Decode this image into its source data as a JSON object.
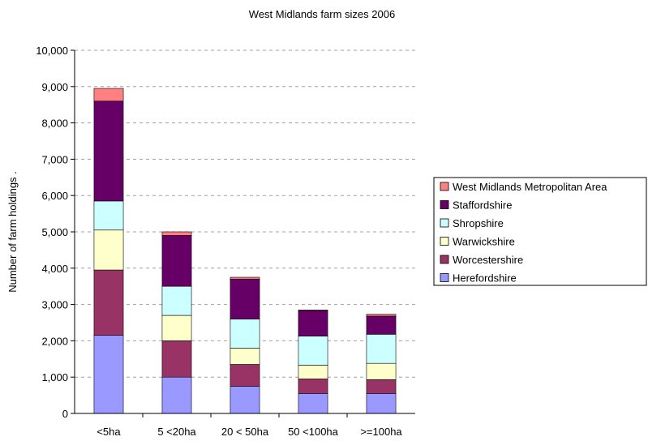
{
  "chart_data": {
    "type": "bar",
    "stacked": true,
    "title": "West Midlands farm sizes 2006",
    "xlabel": "",
    "ylabel": "Number of farm holdings .",
    "ylim": [
      0,
      10000
    ],
    "ytick_labels": [
      "0",
      "1,000",
      "2,000",
      "3,000",
      "4,000",
      "5,000",
      "6,000",
      "7,000",
      "8,000",
      "9,000",
      "10,000"
    ],
    "grid": true,
    "legend_position": "right",
    "categories": [
      "<5ha",
      "5 <20ha",
      "20 < 50ha",
      "50 <100ha",
      ">=100ha"
    ],
    "series": [
      {
        "name": "Herefordshire",
        "color": "#9999ff",
        "values": [
          2150,
          1000,
          750,
          550,
          550
        ]
      },
      {
        "name": "Worcestershire",
        "color": "#993366",
        "values": [
          1800,
          1000,
          600,
          400,
          380
        ]
      },
      {
        "name": "Warwickshire",
        "color": "#ffffcc",
        "values": [
          1100,
          700,
          450,
          380,
          450
        ]
      },
      {
        "name": "Shropshire",
        "color": "#ccffff",
        "values": [
          800,
          800,
          800,
          800,
          800
        ]
      },
      {
        "name": "Staffordshire",
        "color": "#660066",
        "values": [
          2750,
          1400,
          1100,
          700,
          500
        ]
      },
      {
        "name": "West Midlands Metropolitan Area",
        "color": "#ff8080",
        "values": [
          350,
          100,
          50,
          20,
          50
        ]
      }
    ]
  }
}
